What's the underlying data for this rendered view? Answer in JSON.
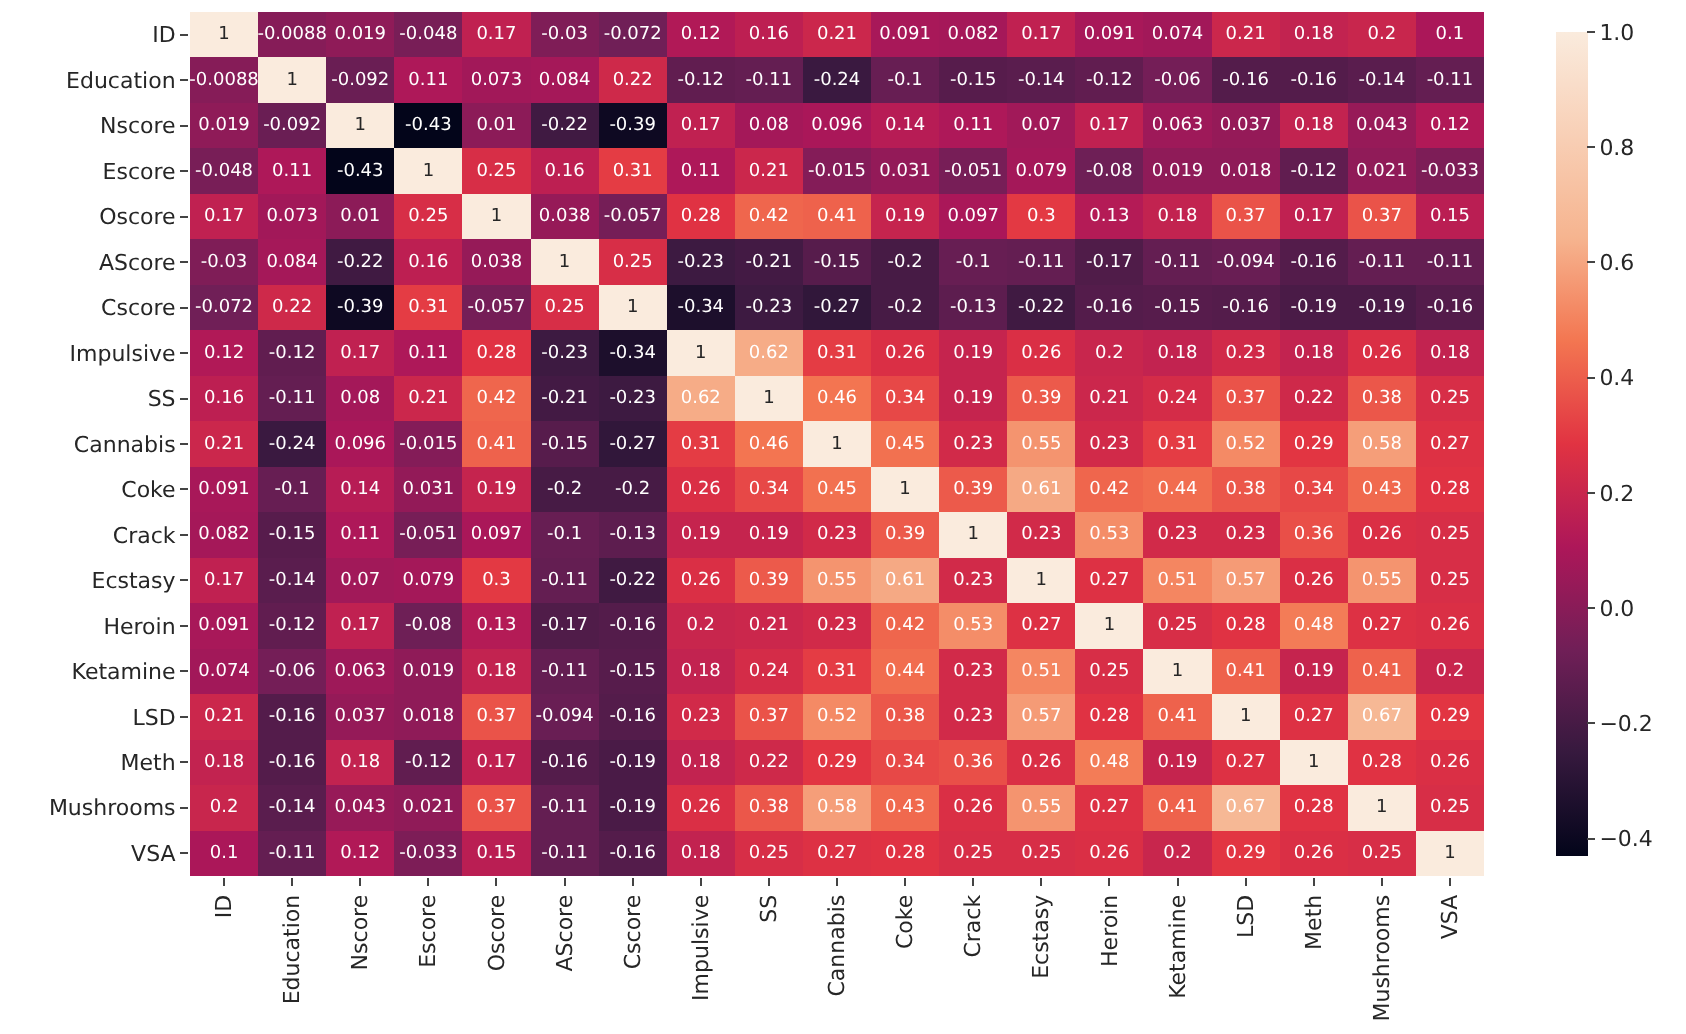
{
  "chart_data": {
    "type": "heatmap",
    "categories": [
      "ID",
      "Education",
      "Nscore",
      "Escore",
      "Oscore",
      "AScore",
      "Cscore",
      "Impulsive",
      "SS",
      "Cannabis",
      "Coke",
      "Crack",
      "Ecstasy",
      "Heroin",
      "Ketamine",
      "LSD",
      "Meth",
      "Mushrooms",
      "VSA"
    ],
    "y_categories": [
      "ID",
      "Education",
      "Nscore",
      "Escore",
      "Oscore",
      "AScore",
      "Cscore",
      "Impulsive",
      "SS",
      "Cannabis",
      "Coke",
      "Crack",
      "Ecstasy",
      "Heroin",
      "Ketamine",
      "LSD",
      "Meth",
      "Mushrooms",
      "VSA"
    ],
    "cells": [
      [
        1,
        -0.0088,
        0.019,
        -0.048,
        0.17,
        -0.03,
        -0.072,
        0.12,
        0.16,
        0.21,
        0.091,
        0.082,
        0.17,
        0.091,
        0.074,
        0.21,
        0.18,
        0.2,
        0.1
      ],
      [
        -0.0088,
        1,
        -0.092,
        0.11,
        0.073,
        0.084,
        0.22,
        -0.12,
        -0.11,
        -0.24,
        -0.1,
        -0.15,
        -0.14,
        -0.12,
        -0.06,
        -0.16,
        -0.16,
        -0.14,
        -0.11
      ],
      [
        0.019,
        -0.092,
        1,
        -0.43,
        0.01,
        -0.22,
        -0.39,
        0.17,
        0.08,
        0.096,
        0.14,
        0.11,
        0.07,
        0.17,
        0.063,
        0.037,
        0.18,
        0.043,
        0.12
      ],
      [
        -0.048,
        0.11,
        -0.43,
        1,
        0.25,
        0.16,
        0.31,
        0.11,
        0.21,
        -0.015,
        0.031,
        -0.051,
        0.079,
        -0.08,
        0.019,
        0.018,
        -0.12,
        0.021,
        -0.033
      ],
      [
        0.17,
        0.073,
        0.01,
        0.25,
        1,
        0.038,
        -0.057,
        0.28,
        0.42,
        0.41,
        0.19,
        0.097,
        0.3,
        0.13,
        0.18,
        0.37,
        0.17,
        0.37,
        0.15
      ],
      [
        -0.03,
        0.084,
        -0.22,
        0.16,
        0.038,
        1,
        0.25,
        -0.23,
        -0.21,
        -0.15,
        -0.2,
        -0.1,
        -0.11,
        -0.17,
        -0.11,
        -0.094,
        -0.16,
        -0.11,
        -0.11
      ],
      [
        -0.072,
        0.22,
        -0.39,
        0.31,
        -0.057,
        0.25,
        1,
        -0.34,
        -0.23,
        -0.27,
        -0.2,
        -0.13,
        -0.22,
        -0.16,
        -0.15,
        -0.16,
        -0.19,
        -0.19,
        -0.16
      ],
      [
        0.12,
        -0.12,
        0.17,
        0.11,
        0.28,
        -0.23,
        -0.34,
        1,
        0.62,
        0.31,
        0.26,
        0.19,
        0.26,
        0.2,
        0.18,
        0.23,
        0.18,
        0.26,
        0.18
      ],
      [
        0.16,
        -0.11,
        0.08,
        0.21,
        0.42,
        -0.21,
        -0.23,
        0.62,
        1,
        0.46,
        0.34,
        0.19,
        0.39,
        0.21,
        0.24,
        0.37,
        0.22,
        0.38,
        0.25
      ],
      [
        0.21,
        -0.24,
        0.096,
        -0.015,
        0.41,
        -0.15,
        -0.27,
        0.31,
        0.46,
        1,
        0.45,
        0.23,
        0.55,
        0.23,
        0.31,
        0.52,
        0.29,
        0.58,
        0.27
      ],
      [
        0.091,
        -0.1,
        0.14,
        0.031,
        0.19,
        -0.2,
        -0.2,
        0.26,
        0.34,
        0.45,
        1,
        0.39,
        0.61,
        0.42,
        0.44,
        0.38,
        0.34,
        0.43,
        0.28
      ],
      [
        0.082,
        -0.15,
        0.11,
        -0.051,
        0.097,
        -0.1,
        -0.13,
        0.19,
        0.19,
        0.23,
        0.39,
        1,
        0.23,
        0.53,
        0.23,
        0.23,
        0.36,
        0.26,
        0.25
      ],
      [
        0.17,
        -0.14,
        0.07,
        0.079,
        0.3,
        -0.11,
        -0.22,
        0.26,
        0.39,
        0.55,
        0.61,
        0.23,
        1,
        0.27,
        0.51,
        0.57,
        0.26,
        0.55,
        0.25
      ],
      [
        0.091,
        -0.12,
        0.17,
        -0.08,
        0.13,
        -0.17,
        -0.16,
        0.2,
        0.21,
        0.23,
        0.42,
        0.53,
        0.27,
        1,
        0.25,
        0.28,
        0.48,
        0.27,
        0.26
      ],
      [
        0.074,
        -0.06,
        0.063,
        0.019,
        0.18,
        -0.11,
        -0.15,
        0.18,
        0.24,
        0.31,
        0.44,
        0.23,
        0.51,
        0.25,
        1,
        0.41,
        0.19,
        0.41,
        0.2
      ],
      [
        0.21,
        -0.16,
        0.037,
        0.018,
        0.37,
        -0.094,
        -0.16,
        0.23,
        0.37,
        0.52,
        0.38,
        0.23,
        0.57,
        0.28,
        0.41,
        1,
        0.27,
        0.67,
        0.29
      ],
      [
        0.18,
        -0.16,
        0.18,
        -0.12,
        0.17,
        -0.16,
        -0.19,
        0.18,
        0.22,
        0.29,
        0.34,
        0.36,
        0.26,
        0.48,
        0.19,
        0.27,
        1,
        0.28,
        0.26
      ],
      [
        0.2,
        -0.14,
        0.043,
        0.021,
        0.37,
        -0.11,
        -0.19,
        0.26,
        0.38,
        0.58,
        0.43,
        0.26,
        0.55,
        0.27,
        0.41,
        0.67,
        0.28,
        1,
        0.25
      ],
      [
        0.1,
        -0.11,
        0.12,
        -0.033,
        0.15,
        -0.11,
        -0.16,
        0.18,
        0.25,
        0.27,
        0.28,
        0.25,
        0.25,
        0.26,
        0.2,
        0.29,
        0.26,
        0.25,
        1
      ]
    ],
    "clim": [
      -0.43,
      1
    ],
    "cticks": [
      {
        "value": -0.4,
        "label": "−0.4"
      },
      {
        "value": -0.2,
        "label": "−0.2"
      },
      {
        "value": 0,
        "label": "0.0"
      },
      {
        "value": 0.2,
        "label": "0.2"
      },
      {
        "value": 0.4,
        "label": "0.4"
      },
      {
        "value": 0.6,
        "label": "0.6"
      },
      {
        "value": 0.8,
        "label": "0.8"
      },
      {
        "value": 1,
        "label": "1.0"
      }
    ],
    "data_labels": true
  }
}
